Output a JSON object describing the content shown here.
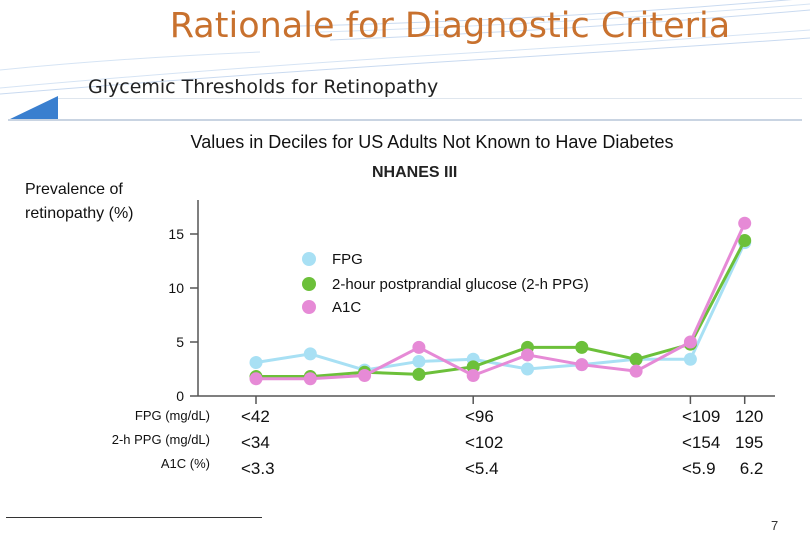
{
  "slide": {
    "title": "Rationale for Diagnostic Criteria",
    "subtitle": "Glycemic Thresholds for Retinopathy",
    "page_number": "7"
  },
  "colors": {
    "title": "#c8712e",
    "accent_blue": "#3a7fcf",
    "fpg": "#a8e0f4",
    "ppg": "#6cc03a",
    "a1c": "#e68ad6"
  },
  "chart_data": {
    "type": "line",
    "title": "Values in Deciles for US Adults Not Known to Have Diabetes",
    "subtitle": "NHANES III",
    "ylabel": "Prevalence of\nretinopathy (%)",
    "ylim": [
      0,
      17
    ],
    "yticks": [
      "0",
      "5",
      "10",
      "15"
    ],
    "grid": false,
    "legend_placement": "center-right",
    "x": [
      1,
      2,
      3,
      4,
      5,
      6,
      7,
      8,
      9,
      10
    ],
    "row_labels": [
      "FPG (mg/dL)",
      "2-h PPG (mg/dL)",
      "A1C (%)"
    ],
    "category_labels": [
      {
        "decile": 1,
        "text": "<42\n<34\n<3.3"
      },
      {
        "decile": 5,
        "text": "<96\n<102\n<5.4"
      },
      {
        "decile": 9,
        "text": "<109\n<154\n<5.9"
      },
      {
        "decile": 10,
        "text": "120\n195\n6.2"
      }
    ],
    "series": [
      {
        "name": "FPG",
        "color": "#a8e0f4",
        "values": [
          3.1,
          3.9,
          2.4,
          3.2,
          3.4,
          2.5,
          2.9,
          3.4,
          3.4,
          14.2
        ]
      },
      {
        "name": "2-hour postprandial glucose (2-h PPG)",
        "color": "#6cc03a",
        "values": [
          1.8,
          1.8,
          2.2,
          2.0,
          2.7,
          4.5,
          4.5,
          3.4,
          4.8,
          14.4
        ]
      },
      {
        "name": "A1C",
        "color": "#e68ad6",
        "values": [
          1.6,
          1.6,
          1.9,
          4.5,
          1.9,
          3.8,
          2.9,
          2.3,
          5.0,
          16.0
        ]
      }
    ]
  }
}
